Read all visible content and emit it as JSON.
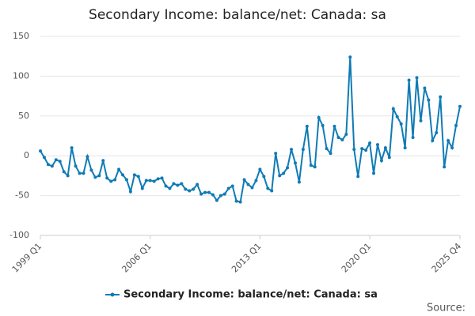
{
  "chart_data": {
    "type": "line",
    "title": "Secondary Income: balance/net: Canada: sa",
    "categories": [
      "1999 Q1",
      null,
      null,
      null,
      null,
      null,
      null,
      null,
      null,
      null,
      null,
      null,
      null,
      null,
      null,
      null,
      null,
      null,
      null,
      null,
      null,
      null,
      null,
      null,
      null,
      null,
      null,
      null,
      "2006 Q1",
      null,
      null,
      null,
      null,
      null,
      null,
      null,
      null,
      null,
      null,
      null,
      null,
      null,
      null,
      null,
      null,
      null,
      null,
      null,
      null,
      null,
      null,
      null,
      null,
      null,
      null,
      null,
      "2013 Q1",
      null,
      null,
      null,
      null,
      null,
      null,
      null,
      null,
      null,
      null,
      null,
      null,
      null,
      null,
      null,
      null,
      null,
      null,
      null,
      null,
      null,
      null,
      null,
      null,
      null,
      null,
      null,
      "2020 Q1",
      null,
      null,
      null,
      null,
      null,
      null,
      null,
      null,
      null,
      null,
      null,
      null,
      null,
      null,
      null,
      null,
      null,
      null,
      null,
      null,
      null,
      null,
      "2025 Q4"
    ],
    "series": [
      {
        "name": "Secondary Income: balance/net: Canada: sa",
        "color": "#0f7bb5",
        "values": [
          6,
          -2,
          -11,
          -13,
          -5,
          -7,
          -20,
          -25,
          10,
          -13,
          -22,
          -22,
          -1,
          -18,
          -27,
          -25,
          -6,
          -28,
          -32,
          -30,
          -17,
          -24,
          -30,
          -45,
          -24,
          -26,
          -41,
          -31,
          -31,
          -32,
          -29,
          -28,
          -38,
          -41,
          -35,
          -37,
          -35,
          -42,
          -44,
          -42,
          -36,
          -48,
          -46,
          -46,
          -49,
          -56,
          -50,
          -48,
          -41,
          -38,
          -57,
          -58,
          -30,
          -36,
          -40,
          -31,
          -17,
          -26,
          -41,
          -44,
          3,
          -25,
          -22,
          -15,
          8,
          -9,
          -33,
          8,
          37,
          -12,
          -14,
          48,
          38,
          9,
          3,
          37,
          23,
          20,
          27,
          124,
          8,
          -26,
          9,
          7,
          16,
          -22,
          14,
          -6,
          10,
          -2,
          59,
          49,
          40,
          10,
          95,
          23,
          98,
          44,
          85,
          70,
          19,
          29,
          74,
          -14,
          19,
          10,
          38,
          62
        ]
      }
    ],
    "ylim": [
      -100,
      150
    ],
    "yticks": [
      -100,
      -50,
      0,
      50,
      100,
      150
    ],
    "grid": true,
    "legend": "bottom",
    "source": "Source:"
  }
}
